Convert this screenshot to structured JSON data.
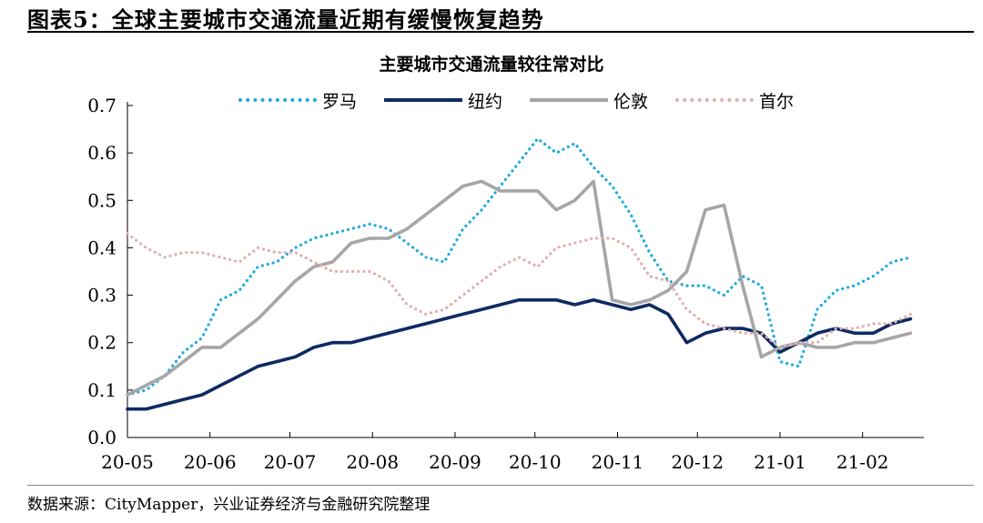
{
  "figure": {
    "title": "图表5：全球主要城市交通流量近期有缓慢恢复趋势",
    "source": "数据来源：CityMapper，兴业证券经济与金融研究院整理"
  },
  "chart_data": {
    "type": "line",
    "title": "主要城市交通流量较往常对比",
    "xlabel": "",
    "ylabel": "",
    "x_ticks": [
      "20-05",
      "20-06",
      "20-07",
      "20-08",
      "20-09",
      "20-10",
      "20-11",
      "20-12",
      "21-01",
      "21-02"
    ],
    "y_ticks": [
      "0.0",
      "0.1",
      "0.2",
      "0.3",
      "0.4",
      "0.5",
      "0.6",
      "0.7"
    ],
    "ylim": [
      0,
      0.7
    ],
    "grid": false,
    "legend_position": "top",
    "x": [
      "2020-05-01",
      "2020-05-08",
      "2020-05-15",
      "2020-05-22",
      "2020-05-29",
      "2020-06-05",
      "2020-06-12",
      "2020-06-19",
      "2020-06-26",
      "2020-07-03",
      "2020-07-10",
      "2020-07-17",
      "2020-07-24",
      "2020-07-31",
      "2020-08-07",
      "2020-08-14",
      "2020-08-21",
      "2020-08-28",
      "2020-09-04",
      "2020-09-11",
      "2020-09-18",
      "2020-09-25",
      "2020-10-02",
      "2020-10-09",
      "2020-10-16",
      "2020-10-23",
      "2020-10-30",
      "2020-11-06",
      "2020-11-13",
      "2020-11-20",
      "2020-11-27",
      "2020-12-04",
      "2020-12-11",
      "2020-12-18",
      "2020-12-25",
      "2021-01-01",
      "2021-01-08",
      "2021-01-15",
      "2021-01-22",
      "2021-01-29",
      "2021-02-05",
      "2021-02-12",
      "2021-02-19"
    ],
    "series": [
      {
        "name": "罗马",
        "color": "#1CA9E0",
        "style": "dotted",
        "values": [
          0.09,
          0.1,
          0.13,
          0.18,
          0.21,
          0.29,
          0.31,
          0.36,
          0.37,
          0.4,
          0.42,
          0.43,
          0.44,
          0.45,
          0.44,
          0.41,
          0.38,
          0.37,
          0.44,
          0.48,
          0.53,
          0.58,
          0.63,
          0.6,
          0.62,
          0.57,
          0.53,
          0.47,
          0.39,
          0.33,
          0.32,
          0.32,
          0.3,
          0.34,
          0.32,
          0.16,
          0.15,
          0.27,
          0.31,
          0.32,
          0.34,
          0.37,
          0.38
        ]
      },
      {
        "name": "纽约",
        "color": "#0E2A62",
        "style": "solid",
        "values": [
          0.06,
          0.06,
          0.07,
          0.08,
          0.09,
          0.11,
          0.13,
          0.15,
          0.16,
          0.17,
          0.19,
          0.2,
          0.2,
          0.21,
          0.22,
          0.23,
          0.24,
          0.25,
          0.26,
          0.27,
          0.28,
          0.29,
          0.29,
          0.29,
          0.28,
          0.29,
          0.28,
          0.27,
          0.28,
          0.26,
          0.2,
          0.22,
          0.23,
          0.23,
          0.22,
          0.18,
          0.2,
          0.22,
          0.23,
          0.22,
          0.22,
          0.24,
          0.25
        ]
      },
      {
        "name": "伦敦",
        "color": "#A6A6A6",
        "style": "solid",
        "values": [
          0.09,
          0.11,
          0.13,
          0.16,
          0.19,
          0.19,
          0.22,
          0.25,
          0.29,
          0.33,
          0.36,
          0.37,
          0.41,
          0.42,
          0.42,
          0.44,
          0.47,
          0.5,
          0.53,
          0.54,
          0.52,
          0.52,
          0.52,
          0.48,
          0.5,
          0.54,
          0.29,
          0.28,
          0.29,
          0.31,
          0.35,
          0.48,
          0.49,
          0.32,
          0.17,
          0.19,
          0.2,
          0.19,
          0.19,
          0.2,
          0.2,
          0.21,
          0.22
        ]
      },
      {
        "name": "首尔",
        "color": "#E2AEAE",
        "style": "dotted",
        "values": [
          0.43,
          0.4,
          0.38,
          0.39,
          0.39,
          0.38,
          0.37,
          0.4,
          0.39,
          0.39,
          0.37,
          0.35,
          0.35,
          0.35,
          0.33,
          0.28,
          0.26,
          0.27,
          0.3,
          0.33,
          0.36,
          0.38,
          0.36,
          0.4,
          0.41,
          0.42,
          0.42,
          0.4,
          0.34,
          0.33,
          0.27,
          0.24,
          0.23,
          0.22,
          0.22,
          0.19,
          0.2,
          0.2,
          0.23,
          0.23,
          0.24,
          0.24,
          0.26
        ]
      }
    ]
  }
}
